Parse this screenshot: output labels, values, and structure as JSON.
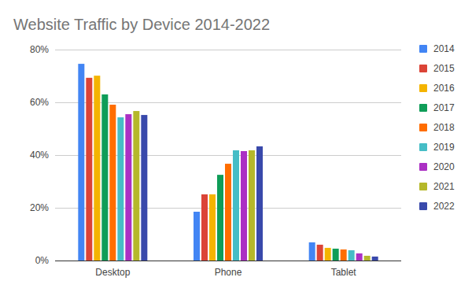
{
  "chart_data": {
    "type": "bar",
    "title": "Website Traffic by Device 2014-2022",
    "categories": [
      "Desktop",
      "Phone",
      "Tablet"
    ],
    "series": [
      {
        "name": "2014",
        "color": "#4285f4",
        "values": [
          74.6,
          18.5,
          6.9
        ]
      },
      {
        "name": "2015",
        "color": "#db4437",
        "values": [
          69.3,
          25.1,
          6.0
        ]
      },
      {
        "name": "2016",
        "color": "#f4b400",
        "values": [
          70.1,
          25.1,
          4.8
        ]
      },
      {
        "name": "2017",
        "color": "#0f9d58",
        "values": [
          63.0,
          32.5,
          4.5
        ]
      },
      {
        "name": "2018",
        "color": "#ff6d00",
        "values": [
          59.1,
          36.7,
          4.2
        ]
      },
      {
        "name": "2019",
        "color": "#46bdc6",
        "values": [
          54.3,
          41.8,
          3.9
        ]
      },
      {
        "name": "2020",
        "color": "#ab30c4",
        "values": [
          55.5,
          41.5,
          2.7
        ]
      },
      {
        "name": "2021",
        "color": "#b5b82a",
        "values": [
          56.7,
          41.8,
          1.8
        ]
      },
      {
        "name": "2022",
        "color": "#3949ab",
        "values": [
          55.2,
          43.3,
          1.5
        ]
      }
    ],
    "ylim": [
      0,
      80
    ],
    "yticks": [
      {
        "value": 0,
        "label": "0%"
      },
      {
        "value": 20,
        "label": "20%"
      },
      {
        "value": 40,
        "label": "40%"
      },
      {
        "value": 60,
        "label": "60%"
      },
      {
        "value": 80,
        "label": "80%"
      }
    ],
    "grid": true,
    "legend": "right"
  }
}
